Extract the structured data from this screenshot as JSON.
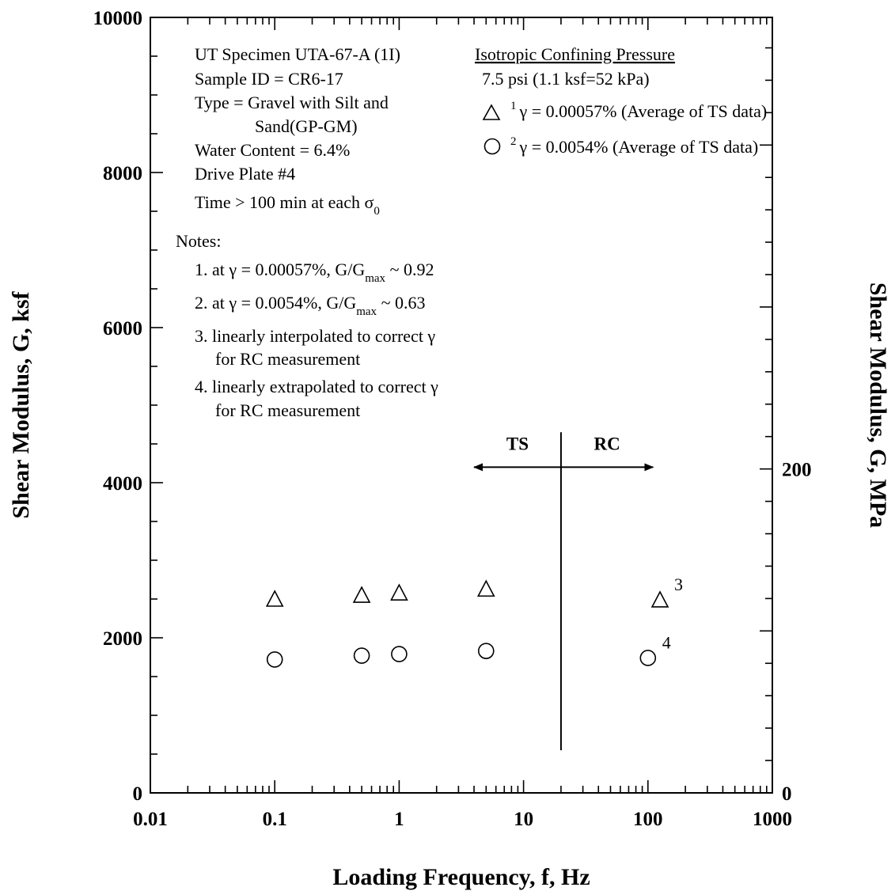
{
  "chart_data": {
    "type": "scatter",
    "xscale": "log",
    "xlim": [
      0.01,
      1000
    ],
    "ylim": [
      0,
      10000
    ],
    "xlabel": "Loading Frequency, f, Hz",
    "ylabel": "Shear Modulus, G, ksf",
    "y2label": "Shear Modulus, G, MPa",
    "x_tick_labels": [
      "0.01",
      "0.1",
      "1",
      "10",
      "100",
      "1000"
    ],
    "y_tick_labels": [
      "0",
      "2000",
      "4000",
      "6000",
      "8000",
      "10000"
    ],
    "y2_tick_labels": [
      "0",
      "200"
    ],
    "y2_ticks_value": [
      0,
      200
    ],
    "y2_per_y": 0.04788,
    "series": [
      {
        "marker": "triangle",
        "points": [
          {
            "x": 0.1,
            "y": 2500
          },
          {
            "x": 0.5,
            "y": 2550
          },
          {
            "x": 1,
            "y": 2580
          },
          {
            "x": 5,
            "y": 2630
          },
          {
            "x": 125,
            "y": 2490
          }
        ]
      },
      {
        "marker": "circle",
        "points": [
          {
            "x": 0.1,
            "y": 1720
          },
          {
            "x": 0.5,
            "y": 1770
          },
          {
            "x": 1,
            "y": 1790
          },
          {
            "x": 5,
            "y": 1830
          },
          {
            "x": 100,
            "y": 1740
          }
        ]
      }
    ],
    "divider": {
      "x": 20,
      "y_range": [
        550,
        4650
      ],
      "arrow_y": 4200,
      "arrow_x_left": 4,
      "arrow_x_right": 110,
      "left_label": "TS",
      "right_label": "RC"
    },
    "point_notes": [
      {
        "text": "3",
        "x": 125,
        "y": 2490
      },
      {
        "text": "4",
        "x": 100,
        "y": 1740
      }
    ],
    "specimen_info": [
      "UT Specimen UTA-67-A (1I)",
      "Sample ID = CR6-17",
      "Type = Gravel with Silt and",
      "Sand(GP-GM)",
      "Water Content = 6.4%",
      "Drive Plate #4",
      "Time > 100 min at each σ",
      "0"
    ],
    "notes_title": "Notes:",
    "notes": [
      {
        "pre": "1. at γ = 0.00057%, G/G",
        "sub": "max",
        "post": " ~ 0.92"
      },
      {
        "pre": "2. at γ = 0.0054%, G/G",
        "sub": "max",
        "post": " ~ 0.63"
      },
      {
        "pre": "3. linearly interpolated to correct γ",
        "sub": "",
        "post": ""
      },
      {
        "pre": "for RC measurement",
        "sub": "",
        "post": ""
      },
      {
        "pre": "4. linearly extrapolated to correct γ",
        "sub": "",
        "post": ""
      },
      {
        "pre": "for RC measurement",
        "sub": "",
        "post": ""
      }
    ],
    "legend": {
      "title": "Isotropic Confining  Pressure",
      "pressure": "7.5 psi (1.1 ksf=52 kPa)",
      "entries": [
        {
          "marker": "triangle",
          "sup": "1",
          "text": "γ = 0.00057% (Average of TS data)"
        },
        {
          "marker": "circle",
          "sup": "2",
          "text": "γ = 0.0054% (Average of TS data)"
        }
      ]
    }
  }
}
